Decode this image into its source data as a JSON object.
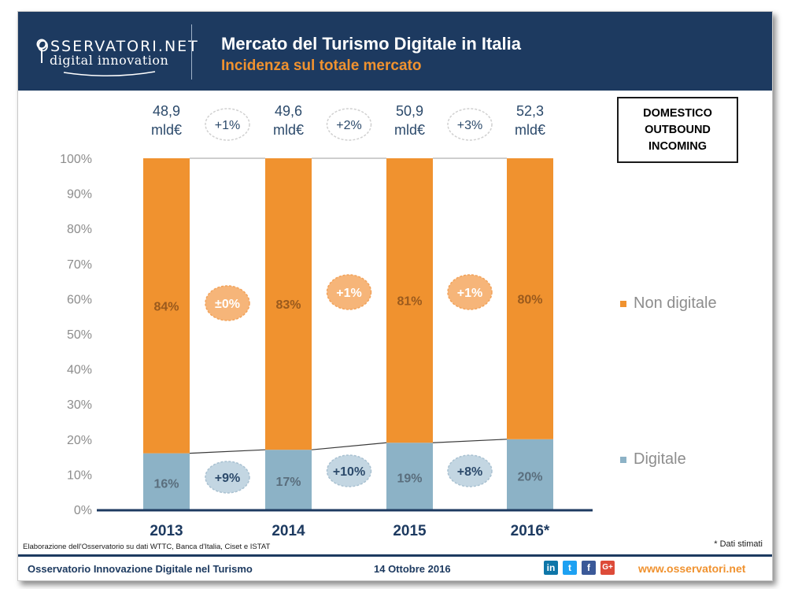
{
  "header": {
    "logo_top": "OSSERVATORI.NET",
    "logo_bottom": "digital innovation",
    "title": "Mercato del Turismo Digitale in Italia",
    "subtitle": "Incidenza sul totale mercato"
  },
  "segment_box": {
    "lines": [
      "DOMESTICO",
      "OUTBOUND",
      "INCOMING"
    ]
  },
  "chart_data": {
    "type": "bar",
    "stacked": true,
    "percent": true,
    "categories": [
      "2013",
      "2014",
      "2015",
      "2016*"
    ],
    "series": [
      {
        "name": "Digitale",
        "values": [
          16,
          17,
          19,
          20
        ],
        "labels": [
          "16%",
          "17%",
          "19%",
          "20%"
        ],
        "color": "#8cb2c6"
      },
      {
        "name": "Non digitale",
        "values": [
          84,
          83,
          81,
          80
        ],
        "labels": [
          "84%",
          "83%",
          "81%",
          "80%"
        ],
        "color": "#f0922f"
      }
    ],
    "totals": [
      {
        "value": "48,9",
        "unit": "mld€"
      },
      {
        "value": "49,6",
        "unit": "mld€"
      },
      {
        "value": "50,9",
        "unit": "mld€"
      },
      {
        "value": "52,3",
        "unit": "mld€"
      }
    ],
    "growth_total": [
      "+1%",
      "+2%",
      "+3%"
    ],
    "growth_non_digital": [
      "±0%",
      "+1%",
      "+1%"
    ],
    "growth_digital": [
      "+9%",
      "+10%",
      "+8%"
    ],
    "y_ticks": [
      "0%",
      "10%",
      "20%",
      "30%",
      "40%",
      "50%",
      "60%",
      "70%",
      "80%",
      "90%",
      "100%"
    ],
    "ylim": [
      0,
      100
    ],
    "legend_position": "right"
  },
  "legend": {
    "non_digital": "Non digitale",
    "digital": "Digitale"
  },
  "notes": {
    "source": "Elaborazione dell'Osservatorio su dati WTTC, Banca d'Italia, Ciset e ISTAT",
    "estimate": "* Dati stimati"
  },
  "footer": {
    "left": "Osservatorio Innovazione Digitale nel Turismo",
    "date": "14 Ottobre 2016",
    "url": "www.osservatori.net",
    "social": [
      "in",
      "t",
      "f",
      "G+"
    ]
  },
  "colors": {
    "navy": "#1d3a60",
    "orange": "#f0922f",
    "light_blue": "#8cb2c6",
    "bubble_blue": "#c3d6e2",
    "bubble_orange": "#f6b579"
  }
}
